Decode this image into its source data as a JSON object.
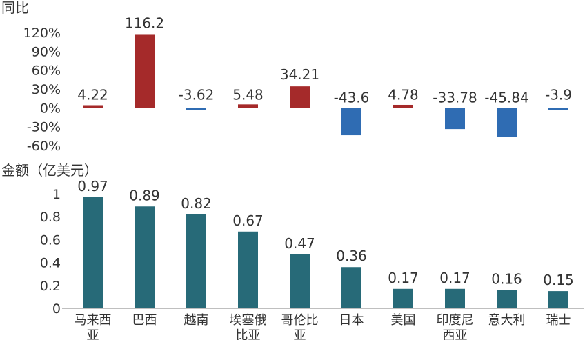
{
  "chart_data": [
    {
      "type": "bar",
      "ylabel": "同比",
      "ylim": [
        -60,
        120
      ],
      "ytick_labels": [
        "120%",
        "90%",
        "60%",
        "30%",
        "0%",
        "-30%",
        "-60%"
      ],
      "ytick_values": [
        120,
        90,
        60,
        30,
        0,
        -30,
        -60
      ],
      "categories": [
        "马来西亚",
        "巴西",
        "越南",
        "埃塞俄比亚",
        "哥伦比亚",
        "日本",
        "美国",
        "印度尼西亚",
        "意大利",
        "瑞士"
      ],
      "values": [
        4.22,
        116.2,
        -3.62,
        5.48,
        34.21,
        -43.6,
        4.78,
        -33.78,
        -45.84,
        -3.9
      ],
      "value_labels": [
        "4.22",
        "116.2",
        "-3.62",
        "5.48",
        "34.21",
        "-43.6",
        "4.78",
        "-33.78",
        "-45.84",
        "-3.9"
      ],
      "positive_color": "#A52A2A",
      "negative_color": "#2F6CB3",
      "grid": false
    },
    {
      "type": "bar",
      "ylabel": "金额（亿美元）",
      "ylim": [
        0,
        1
      ],
      "ytick_labels": [
        "1",
        "0.8",
        "0.6",
        "0.4",
        "0.2",
        "0"
      ],
      "ytick_values": [
        1,
        0.8,
        0.6,
        0.4,
        0.2,
        0
      ],
      "categories": [
        "马来西亚",
        "巴西",
        "越南",
        "埃塞俄比亚",
        "哥伦比亚",
        "日本",
        "美国",
        "印度尼西亚",
        "意大利",
        "瑞士"
      ],
      "category_lines": [
        [
          "马来西",
          "亚"
        ],
        [
          "巴西"
        ],
        [
          "越南"
        ],
        [
          "埃塞俄",
          "比亚"
        ],
        [
          "哥伦比",
          "亚"
        ],
        [
          "日本"
        ],
        [
          "美国"
        ],
        [
          "印度尼",
          "西亚"
        ],
        [
          "意大利"
        ],
        [
          "瑞士"
        ]
      ],
      "values": [
        0.97,
        0.89,
        0.82,
        0.67,
        0.47,
        0.36,
        0.17,
        0.17,
        0.16,
        0.15
      ],
      "value_labels": [
        "0.97",
        "0.89",
        "0.82",
        "0.67",
        "0.47",
        "0.36",
        "0.17",
        "0.17",
        "0.16",
        "0.15"
      ],
      "bar_color": "#276A78",
      "grid": false
    }
  ]
}
